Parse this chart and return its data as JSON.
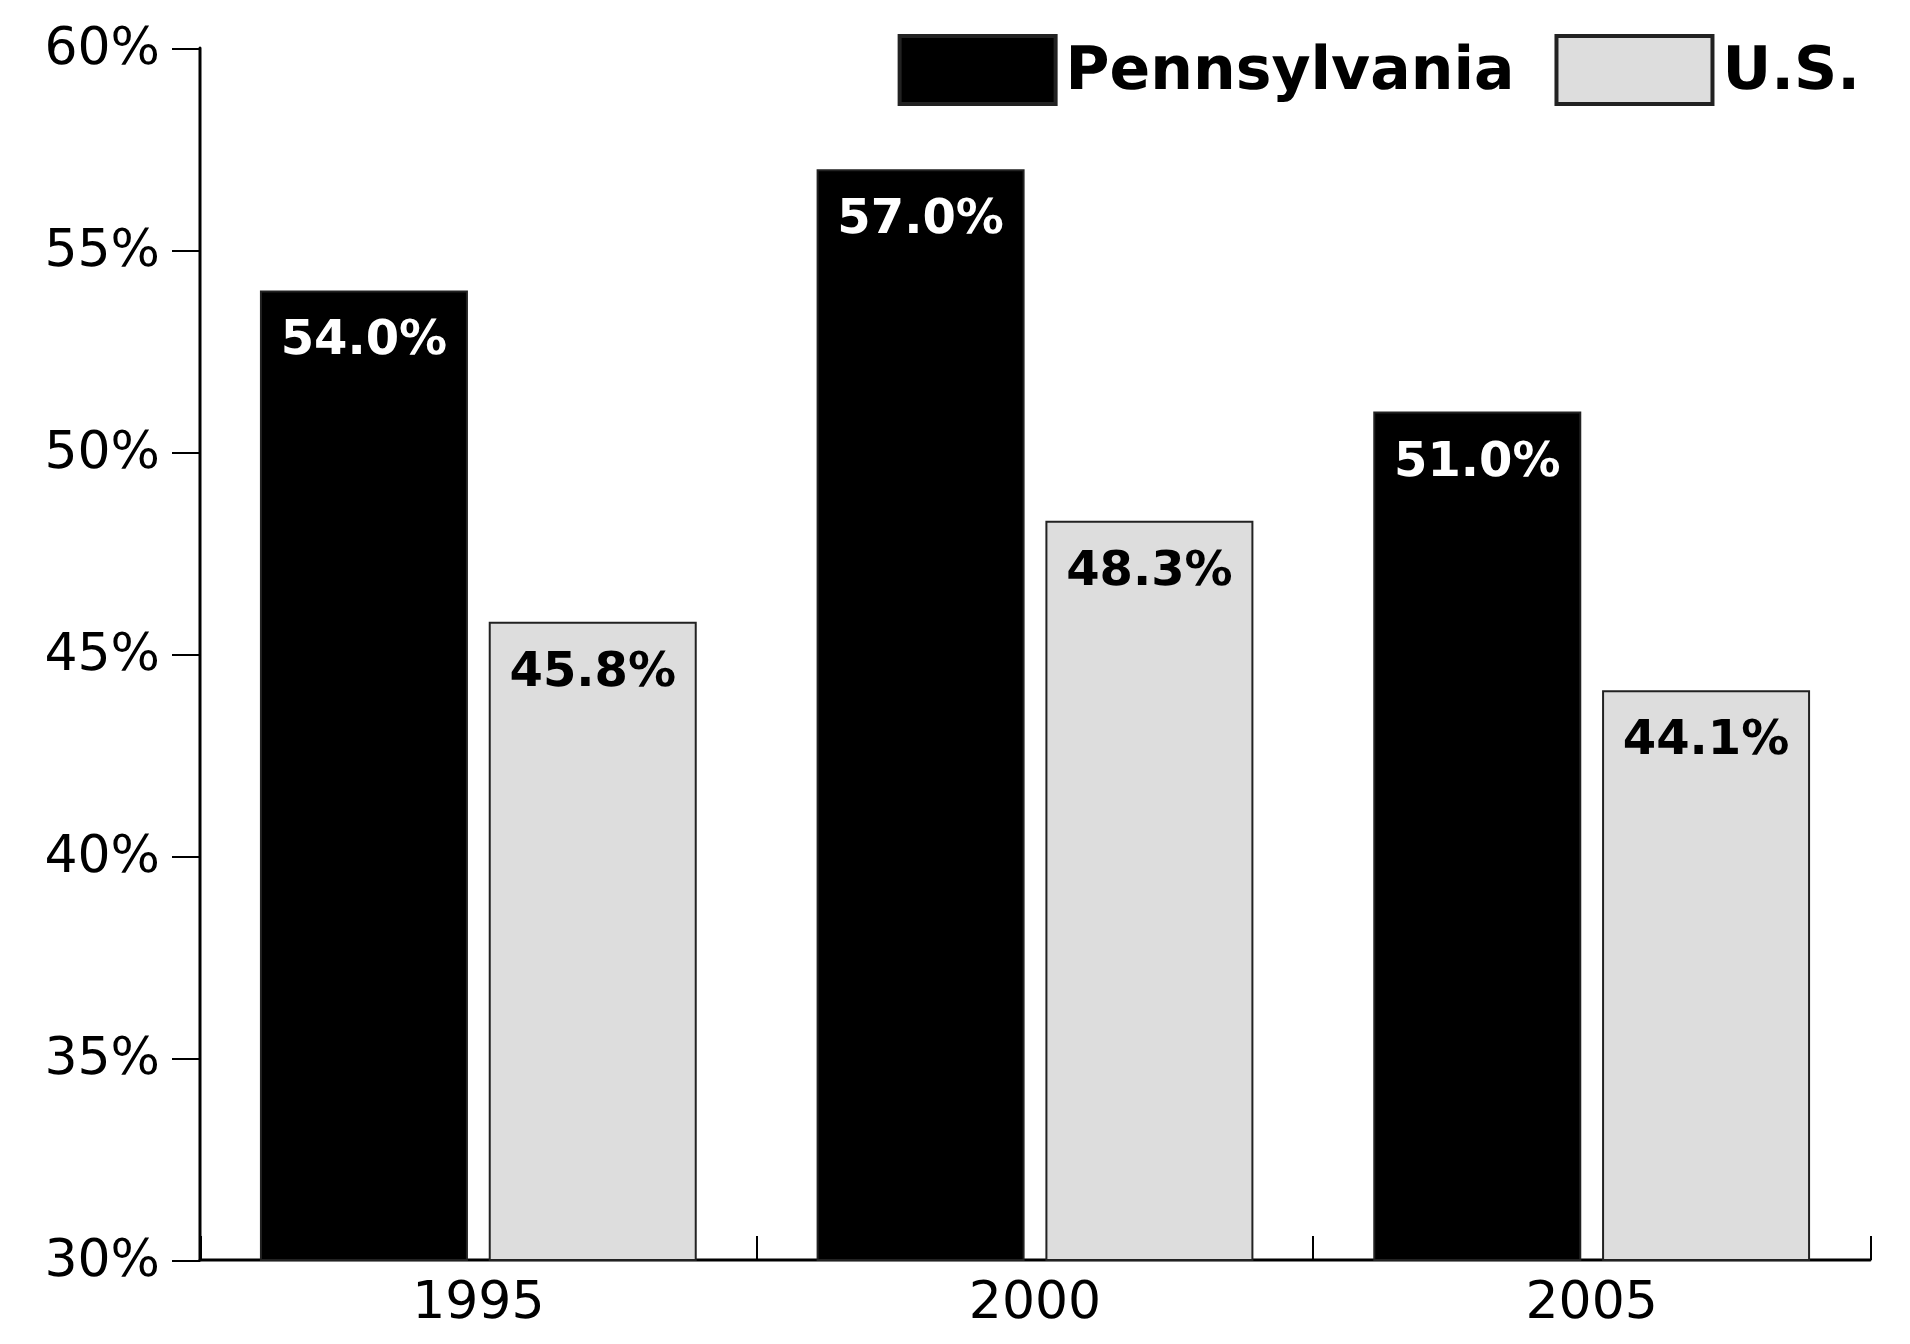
{
  "chart_data": {
    "type": "bar",
    "categories": [
      "1995",
      "2000",
      "2005"
    ],
    "series": [
      {
        "name": "Pennsylvania",
        "color": "#000000",
        "values": [
          54.0,
          57.0,
          51.0
        ],
        "value_labels": [
          "54.0%",
          "57.0%",
          "51.0%"
        ]
      },
      {
        "name": "U.S.",
        "color": "#dddddd",
        "values": [
          45.8,
          48.3,
          44.1
        ],
        "value_labels": [
          "45.8%",
          "48.3%",
          "44.1%"
        ]
      }
    ],
    "ylim": [
      30,
      60
    ],
    "yticks": [
      {
        "value": 30,
        "label": "30%"
      },
      {
        "value": 35,
        "label": "35%"
      },
      {
        "value": 40,
        "label": "40%"
      },
      {
        "value": 45,
        "label": "45%"
      },
      {
        "value": 50,
        "label": "50%"
      },
      {
        "value": 55,
        "label": "55%"
      },
      {
        "value": 60,
        "label": "60%"
      }
    ],
    "grid": false,
    "legend": "top right"
  }
}
